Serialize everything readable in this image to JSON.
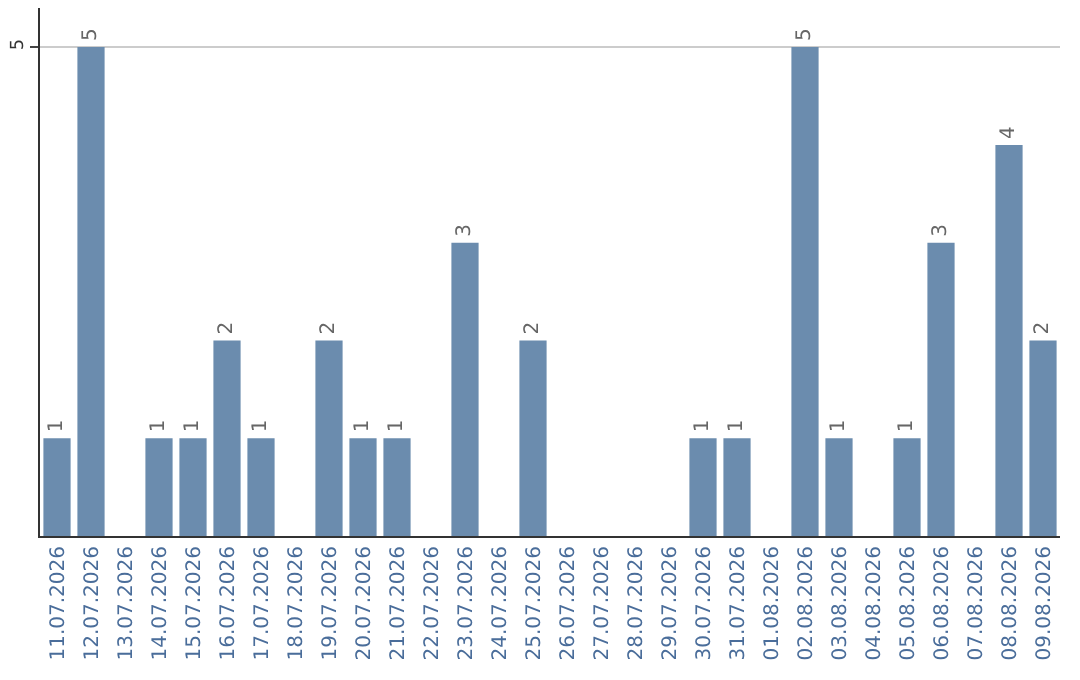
{
  "chart_data": {
    "type": "bar",
    "categories": [
      "11.07.2026",
      "12.07.2026",
      "13.07.2026",
      "14.07.2026",
      "15.07.2026",
      "16.07.2026",
      "17.07.2026",
      "18.07.2026",
      "19.07.2026",
      "20.07.2026",
      "21.07.2026",
      "22.07.2026",
      "23.07.2026",
      "24.07.2026",
      "25.07.2026",
      "26.07.2026",
      "27.07.2026",
      "28.07.2026",
      "29.07.2026",
      "30.07.2026",
      "31.07.2026",
      "01.08.2026",
      "02.08.2026",
      "03.08.2026",
      "04.08.2026",
      "05.08.2026",
      "06.08.2026",
      "07.08.2026",
      "08.08.2026",
      "09.08.2026"
    ],
    "values": [
      1,
      5,
      null,
      1,
      1,
      2,
      1,
      null,
      2,
      1,
      1,
      null,
      3,
      null,
      2,
      null,
      null,
      null,
      null,
      1,
      1,
      null,
      5,
      1,
      null,
      1,
      3,
      null,
      4,
      2
    ],
    "color": "#6b8cae",
    "ylim": [
      0,
      5.4
    ],
    "yticks": [
      5
    ],
    "grid": "y",
    "data_labels": true,
    "legend": false
  }
}
